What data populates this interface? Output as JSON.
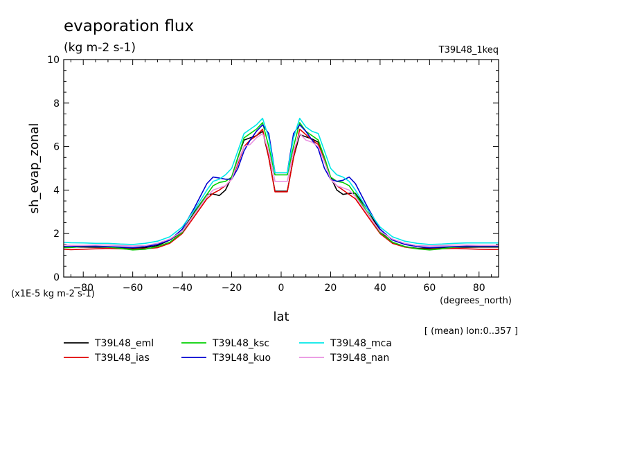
{
  "title": "evaporation flux",
  "units": "(kg m-2 s-1)",
  "run_id": "T39L48_1keq",
  "ylabel": "sh_evap_zonal",
  "xlabel": "lat",
  "scale_note": "(x1E-5 kg m-2 s-1)",
  "x_unit_note": "(degrees_north)",
  "mean_note": "[ (mean) lon:0..357 ]",
  "chart_data": {
    "type": "line",
    "title": "evaporation flux",
    "ylabel": "sh_evap_zonal",
    "xlabel": "lat",
    "xlim": [
      -87.9,
      87.9
    ],
    "ylim": [
      0,
      10
    ],
    "xticks": [
      -80,
      -60,
      -40,
      -20,
      0,
      20,
      40,
      60,
      80
    ],
    "yticks": [
      0,
      2,
      4,
      6,
      8,
      10
    ],
    "x": [
      -87.9,
      -85,
      -80,
      -75,
      -70,
      -65,
      -60,
      -55,
      -50,
      -45,
      -40,
      -35,
      -30,
      -27.5,
      -25,
      -22.5,
      -20,
      -17.5,
      -15,
      -12.5,
      -10,
      -7.5,
      -5,
      -2.5,
      0,
      2.5,
      5,
      7.5,
      10,
      12.5,
      15,
      17.5,
      20,
      22.5,
      25,
      27.5,
      30,
      35,
      40,
      45,
      50,
      55,
      60,
      65,
      70,
      75,
      80,
      85,
      87.9
    ],
    "series": [
      {
        "name": "T39L48_eml",
        "color": "#000000",
        "values": [
          1.4,
          1.38,
          1.38,
          1.37,
          1.37,
          1.35,
          1.33,
          1.35,
          1.45,
          1.7,
          2.1,
          3.0,
          3.8,
          3.82,
          3.75,
          4.0,
          4.6,
          5.5,
          6.3,
          6.4,
          6.5,
          6.7,
          5.5,
          3.95,
          3.95,
          3.95,
          5.5,
          6.55,
          6.45,
          6.35,
          6.2,
          5.5,
          4.6,
          4.0,
          3.8,
          3.85,
          3.85,
          3.1,
          2.1,
          1.6,
          1.4,
          1.32,
          1.33,
          1.35,
          1.37,
          1.37,
          1.38,
          1.38,
          1.38
        ]
      },
      {
        "name": "T39L48_ias",
        "color": "#e00000",
        "values": [
          1.28,
          1.26,
          1.28,
          1.3,
          1.32,
          1.3,
          1.28,
          1.3,
          1.35,
          1.55,
          2.0,
          2.8,
          3.6,
          3.85,
          4.0,
          4.2,
          4.5,
          5.2,
          6.0,
          6.3,
          6.5,
          6.8,
          5.5,
          3.92,
          3.92,
          3.92,
          5.5,
          6.8,
          6.55,
          6.3,
          6.1,
          5.4,
          4.5,
          4.2,
          4.0,
          3.8,
          3.6,
          2.8,
          2.0,
          1.55,
          1.38,
          1.3,
          1.28,
          1.3,
          1.32,
          1.3,
          1.28,
          1.27,
          1.27
        ]
      },
      {
        "name": "T39L48_ksc",
        "color": "#00d000",
        "values": [
          1.35,
          1.36,
          1.4,
          1.4,
          1.38,
          1.32,
          1.25,
          1.28,
          1.4,
          1.6,
          2.05,
          2.95,
          3.8,
          4.2,
          4.35,
          4.4,
          4.6,
          5.5,
          6.4,
          6.6,
          6.8,
          7.1,
          6.0,
          4.7,
          4.7,
          4.7,
          6.0,
          7.1,
          6.7,
          6.5,
          6.3,
          5.5,
          4.6,
          4.4,
          4.35,
          4.2,
          3.8,
          2.95,
          2.05,
          1.6,
          1.4,
          1.3,
          1.25,
          1.3,
          1.38,
          1.4,
          1.4,
          1.4,
          1.4
        ]
      },
      {
        "name": "T39L48_kuo",
        "color": "#0000d0",
        "values": [
          1.4,
          1.4,
          1.42,
          1.42,
          1.4,
          1.38,
          1.35,
          1.4,
          1.5,
          1.7,
          2.2,
          3.2,
          4.3,
          4.6,
          4.55,
          4.5,
          4.5,
          5.0,
          5.8,
          6.3,
          6.7,
          7.0,
          6.6,
          4.8,
          4.8,
          4.8,
          6.6,
          7.0,
          6.7,
          6.3,
          5.9,
          5.0,
          4.5,
          4.4,
          4.45,
          4.6,
          4.3,
          3.2,
          2.2,
          1.7,
          1.5,
          1.4,
          1.35,
          1.38,
          1.4,
          1.42,
          1.42,
          1.42,
          1.42
        ]
      },
      {
        "name": "T39L48_mca",
        "color": "#00e8e8",
        "values": [
          1.6,
          1.58,
          1.57,
          1.55,
          1.55,
          1.52,
          1.5,
          1.55,
          1.65,
          1.85,
          2.3,
          3.1,
          4.0,
          4.4,
          4.5,
          4.7,
          5.0,
          5.8,
          6.6,
          6.8,
          7.0,
          7.3,
          6.4,
          4.8,
          4.8,
          4.8,
          6.4,
          7.3,
          6.9,
          6.7,
          6.6,
          5.8,
          5.0,
          4.7,
          4.6,
          4.4,
          4.0,
          3.1,
          2.3,
          1.85,
          1.65,
          1.55,
          1.5,
          1.52,
          1.55,
          1.57,
          1.57,
          1.57,
          1.57
        ]
      },
      {
        "name": "T39L48_nan",
        "color": "#e890e0",
        "values": [
          1.48,
          1.46,
          1.46,
          1.47,
          1.47,
          1.45,
          1.43,
          1.45,
          1.55,
          1.75,
          2.1,
          2.9,
          3.7,
          4.0,
          4.1,
          4.2,
          4.5,
          5.3,
          6.0,
          6.1,
          6.4,
          6.6,
          5.8,
          4.4,
          4.4,
          4.4,
          5.8,
          6.6,
          6.3,
          6.2,
          6.0,
          5.3,
          4.5,
          4.2,
          4.1,
          4.0,
          3.7,
          2.9,
          2.1,
          1.75,
          1.55,
          1.45,
          1.43,
          1.45,
          1.47,
          1.47,
          1.46,
          1.46,
          1.46
        ]
      }
    ]
  }
}
